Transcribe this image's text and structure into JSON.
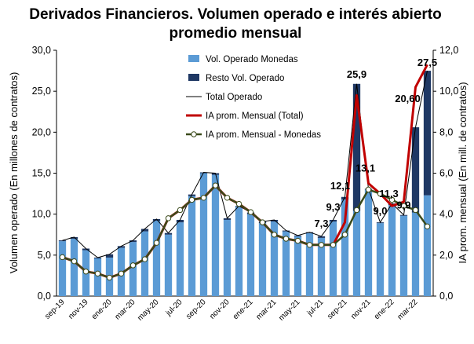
{
  "chart_data": {
    "type": "bar",
    "title": [
      "Derivados Financieros. Volumen operado e interés abierto",
      "promedio mensual"
    ],
    "ylabel_left": "Volumen operado (En millones de contratos)",
    "ylabel_right": "IA prom. mensual (En mill. de contratos)",
    "ylim_left": [
      0,
      30
    ],
    "yticks_left": [
      "0,0",
      "5,0",
      "10,0",
      "15,0",
      "20,0",
      "25,0",
      "30,0"
    ],
    "ylim_right": [
      0,
      12
    ],
    "yticks_right": [
      "0,0",
      "2,0",
      "4,0",
      "6,0",
      "8,0",
      "10,0",
      "12,0"
    ],
    "categories": [
      "sep-19",
      "oct-19",
      "nov-19",
      "dic-19",
      "ene-20",
      "feb-20",
      "mar-20",
      "abr-20",
      "may-20",
      "jun-20",
      "jul-20",
      "ago-20",
      "sep-20",
      "oct-20",
      "nov-20",
      "dic-20",
      "ene-21",
      "feb-21",
      "mar-21",
      "abr-21",
      "may-21",
      "jun-21",
      "jul-21",
      "ago-21",
      "sep-21",
      "oct-21",
      "nov-21",
      "dic-21",
      "ene-22",
      "feb-22",
      "mar-22",
      "abr-22"
    ],
    "x_tick_labels": [
      "sep-19",
      "nov-19",
      "ene-20",
      "mar-20",
      "may-20",
      "jul-20",
      "sep-20",
      "nov-20",
      "ene-21",
      "mar-21",
      "may-21",
      "jul-21",
      "sep-21",
      "nov-21",
      "ene-22",
      "mar-22"
    ],
    "legend_position": "top-center",
    "grid": false,
    "series": [
      {
        "name": "Vol. Operado Monedas",
        "kind": "bar",
        "axis": "left",
        "color": "#5b9bd5",
        "values": [
          6.7,
          7.0,
          5.6,
          4.6,
          4.7,
          5.9,
          6.6,
          7.9,
          9.2,
          7.5,
          9.0,
          12.2,
          15.0,
          14.8,
          9.3,
          10.9,
          10.0,
          8.9,
          9.1,
          7.9,
          7.3,
          7.7,
          7.1,
          9.1,
          11.8,
          10.4,
          13.0,
          8.9,
          11.1,
          9.8,
          10.2,
          12.3
        ]
      },
      {
        "name": "Resto Vol. Operado",
        "kind": "bar_stacked",
        "axis": "left",
        "color": "#1f3864",
        "values": [
          0.1,
          0.2,
          0.2,
          0.1,
          0.4,
          0.2,
          0.2,
          0.3,
          0.2,
          0.2,
          0.3,
          0.2,
          0.1,
          0.2,
          0.2,
          0.1,
          0.2,
          0.2,
          0.2,
          0.1,
          0.1,
          0.1,
          0.2,
          0.2,
          0.3,
          15.5,
          0.1,
          0.1,
          0.2,
          0.1,
          10.4,
          15.2
        ]
      },
      {
        "name": "Total Operado",
        "kind": "line",
        "axis": "left",
        "color": "#000000",
        "values": [
          6.8,
          7.2,
          5.8,
          4.7,
          5.1,
          6.1,
          6.8,
          8.2,
          9.4,
          7.7,
          9.3,
          12.4,
          15.1,
          15.0,
          9.5,
          11.0,
          10.2,
          9.1,
          9.3,
          8.0,
          7.4,
          7.8,
          7.3,
          9.3,
          12.1,
          25.9,
          13.1,
          9.0,
          11.3,
          9.9,
          20.6,
          27.5
        ]
      },
      {
        "name": "IA prom. Mensual (Total)",
        "kind": "line",
        "axis": "right",
        "color": "#c00000",
        "values": [
          1.9,
          1.7,
          1.2,
          1.1,
          0.9,
          1.1,
          1.5,
          1.8,
          2.6,
          3.8,
          4.2,
          4.7,
          4.8,
          5.4,
          4.8,
          4.5,
          4.1,
          3.6,
          3.0,
          2.8,
          2.7,
          2.5,
          2.5,
          2.5,
          3.6,
          9.8,
          5.5,
          5.0,
          4.4,
          4.6,
          10.2,
          11.3
        ]
      },
      {
        "name": "IA prom. Mensual - Monedas",
        "kind": "line_markers",
        "axis": "right",
        "color": "#3a4a1a",
        "values": [
          1.9,
          1.7,
          1.2,
          1.1,
          0.9,
          1.1,
          1.5,
          1.8,
          2.6,
          3.8,
          4.2,
          4.7,
          4.8,
          5.4,
          4.8,
          4.5,
          4.1,
          3.6,
          3.0,
          2.8,
          2.7,
          2.5,
          2.5,
          2.5,
          3.0,
          4.2,
          5.2,
          5.0,
          4.7,
          4.4,
          4.2,
          3.4
        ]
      }
    ],
    "annotations": [
      {
        "text": "7,3",
        "index": 22
      },
      {
        "text": "9,3",
        "index": 23
      },
      {
        "text": "12,1",
        "index": 24
      },
      {
        "text": "25,9",
        "index": 25
      },
      {
        "text": "13,1",
        "index": 26
      },
      {
        "text": "9,0",
        "index": 27
      },
      {
        "text": "11,3",
        "index": 28
      },
      {
        "text": "9,9",
        "index": 29
      },
      {
        "text": "20,60",
        "index": 30
      },
      {
        "text": "27,5",
        "index": 31
      }
    ]
  }
}
